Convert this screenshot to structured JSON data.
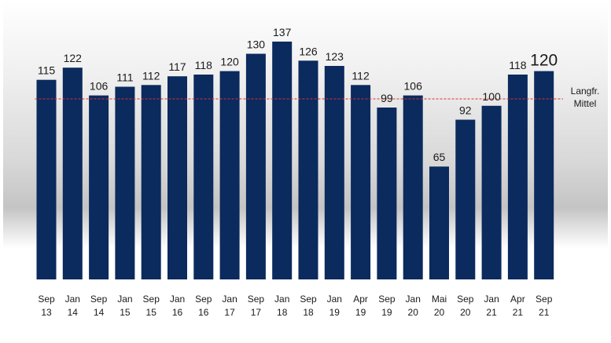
{
  "chart_data": {
    "type": "bar",
    "categories": [
      [
        "Sep",
        "13"
      ],
      [
        "Jan",
        "14"
      ],
      [
        "Sep",
        "14"
      ],
      [
        "Jan",
        "15"
      ],
      [
        "Sep",
        "15"
      ],
      [
        "Jan",
        "16"
      ],
      [
        "Sep",
        "16"
      ],
      [
        "Jan",
        "17"
      ],
      [
        "Sep",
        "17"
      ],
      [
        "Jan",
        "18"
      ],
      [
        "Sep",
        "18"
      ],
      [
        "Jan",
        "19"
      ],
      [
        "Apr",
        "19"
      ],
      [
        "Sep",
        "19"
      ],
      [
        "Jan",
        "20"
      ],
      [
        "Mai",
        "20"
      ],
      [
        "Sep",
        "20"
      ],
      [
        "Jan",
        "21"
      ],
      [
        "Apr",
        "21"
      ],
      [
        "Sep",
        "21"
      ]
    ],
    "values": [
      115,
      122,
      106,
      111,
      112,
      117,
      118,
      120,
      130,
      137,
      126,
      123,
      112,
      99,
      106,
      65,
      92,
      100,
      118,
      120
    ],
    "ylim": [
      0,
      137
    ],
    "reference_line": {
      "value": 104,
      "label": [
        "Langfr.",
        "Mittel"
      ],
      "color": "#e03030"
    },
    "bar_color": "#0b2a5e",
    "grid": false,
    "legend": "none"
  }
}
